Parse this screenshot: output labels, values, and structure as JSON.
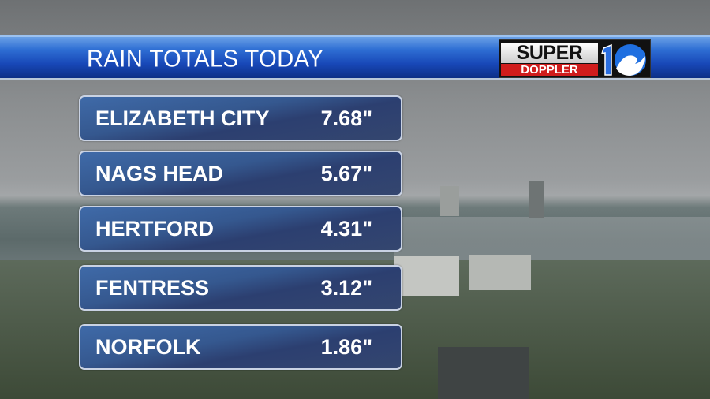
{
  "header": {
    "title": "RAIN TOTALS TODAY"
  },
  "logo": {
    "line1": "SUPER",
    "line2": "DOPPLER",
    "channel": "10"
  },
  "rows": [
    {
      "location": "ELIZABETH CITY",
      "total": "7.68\""
    },
    {
      "location": "NAGS HEAD",
      "total": "5.67\""
    },
    {
      "location": "HERTFORD",
      "total": "4.31\""
    },
    {
      "location": "FENTRESS",
      "total": "3.12\""
    },
    {
      "location": "NORFOLK",
      "total": "1.86\""
    }
  ],
  "colors": {
    "title_bar": "#1848b8",
    "row_bg": "#35588f",
    "logo_red": "#d01c1c"
  }
}
